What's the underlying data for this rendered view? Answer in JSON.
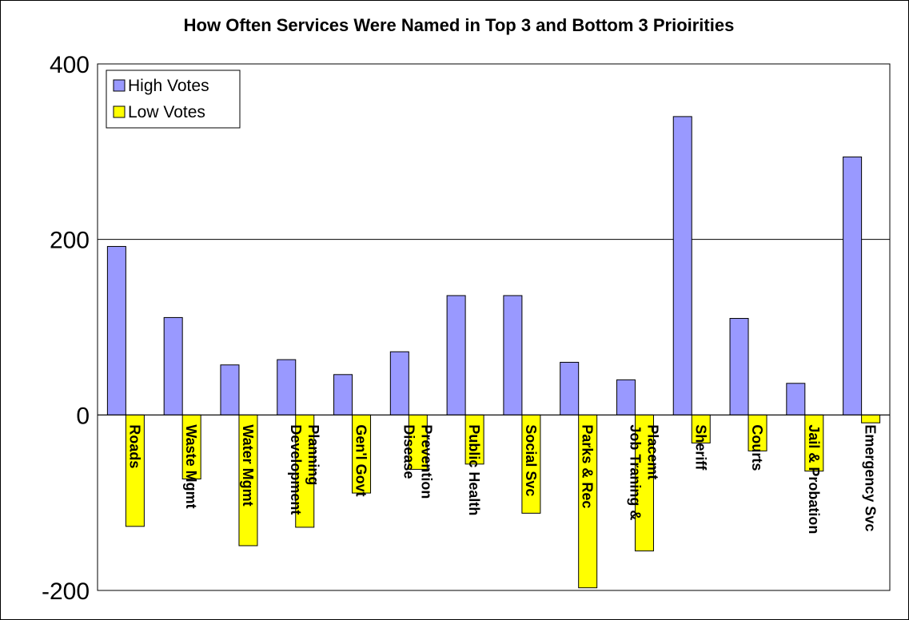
{
  "chart_data": {
    "type": "bar",
    "title": "How Often Services Were Named in Top 3 and Bottom 3 Prioirities",
    "xlabel": "",
    "ylabel": "",
    "ylim": [
      -200,
      400
    ],
    "yticks": [
      400,
      200,
      0,
      -200
    ],
    "ytick_labels": [
      "400",
      "200",
      "0",
      "-200"
    ],
    "grid": "horizontal major gridlines",
    "legend_position": "top-left",
    "categories": [
      [
        "Roads"
      ],
      [
        "Waste Mgmt"
      ],
      [
        "Water Mgmt"
      ],
      [
        "Development",
        "Planning"
      ],
      [
        "Gen'l Govt"
      ],
      [
        "Disease",
        "Prevention"
      ],
      [
        "Public Health"
      ],
      [
        "Social Svc"
      ],
      [
        "Parks & Rec"
      ],
      [
        "Job Traning &",
        "Placemt"
      ],
      [
        "Sheriff"
      ],
      [
        "Courts"
      ],
      [
        "Jail & Probation"
      ],
      [
        "Emergency Svc"
      ]
    ],
    "series": [
      {
        "name": "High Votes",
        "color": "#9999ff",
        "values": [
          192,
          111,
          57,
          63,
          46,
          72,
          136,
          136,
          60,
          40,
          340,
          110,
          36,
          294
        ]
      },
      {
        "name": "Low Votes",
        "color": "#ffff00",
        "values": [
          -127,
          -73,
          -149,
          -128,
          -89,
          -62,
          -56,
          -112,
          -197,
          -155,
          -32,
          -41,
          -64,
          -9
        ]
      }
    ]
  }
}
